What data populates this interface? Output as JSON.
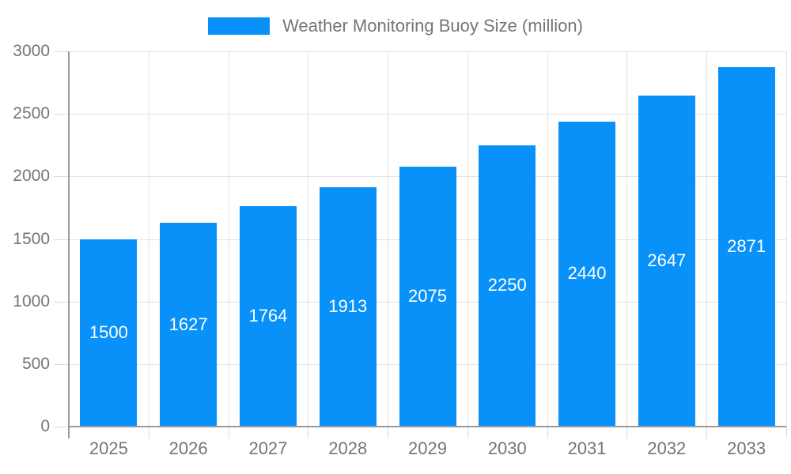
{
  "chart_data": {
    "type": "bar",
    "title": "Weather Monitoring Buoy Size (million)",
    "categories": [
      "2025",
      "2026",
      "2027",
      "2028",
      "2029",
      "2030",
      "2031",
      "2032",
      "2033"
    ],
    "values": [
      1500,
      1627,
      1764,
      1913,
      2075,
      2250,
      2440,
      2647,
      2871
    ],
    "xlabel": "",
    "ylabel": "",
    "ylim": [
      0,
      3000
    ],
    "yticks": [
      0,
      500,
      1000,
      1500,
      2000,
      2500,
      3000
    ],
    "grid": true,
    "legend_position": "top-center",
    "value_labels": "inside-center",
    "colors": {
      "bar": "#0991fa",
      "value_label": "#ffffff",
      "axis_text": "#757575",
      "gridline": "#e2e2e2",
      "axis_line": "#9a9a9a"
    }
  }
}
